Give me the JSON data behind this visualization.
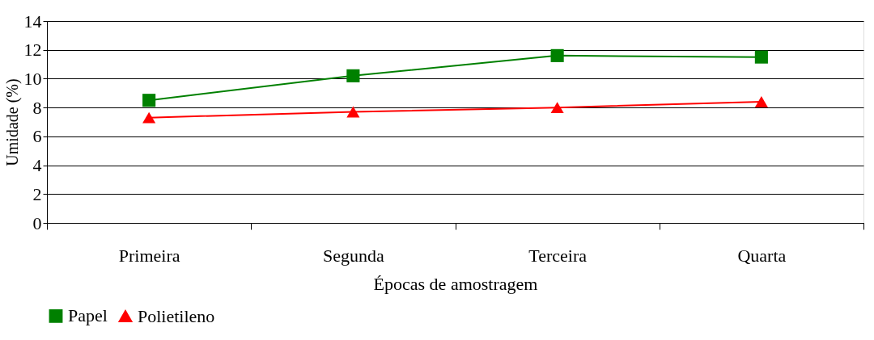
{
  "chart_data": {
    "type": "line",
    "xlabel": "Épocas de amostragem",
    "ylabel": "Umidade (%)",
    "categories": [
      "Primeira",
      "Segunda",
      "Terceira",
      "Quarta"
    ],
    "series": [
      {
        "name": "Papel",
        "color": "#008000",
        "marker": "square",
        "values": [
          8.5,
          10.2,
          11.6,
          11.5
        ]
      },
      {
        "name": "Polietileno",
        "color": "#ff0000",
        "marker": "triangle",
        "values": [
          7.3,
          7.7,
          8.0,
          8.4
        ]
      }
    ],
    "ylim": [
      0,
      14
    ],
    "yticks": [
      0,
      2,
      4,
      6,
      8,
      10,
      12,
      14
    ],
    "grid": "y",
    "legend": "bottom",
    "line_style": "solid"
  }
}
